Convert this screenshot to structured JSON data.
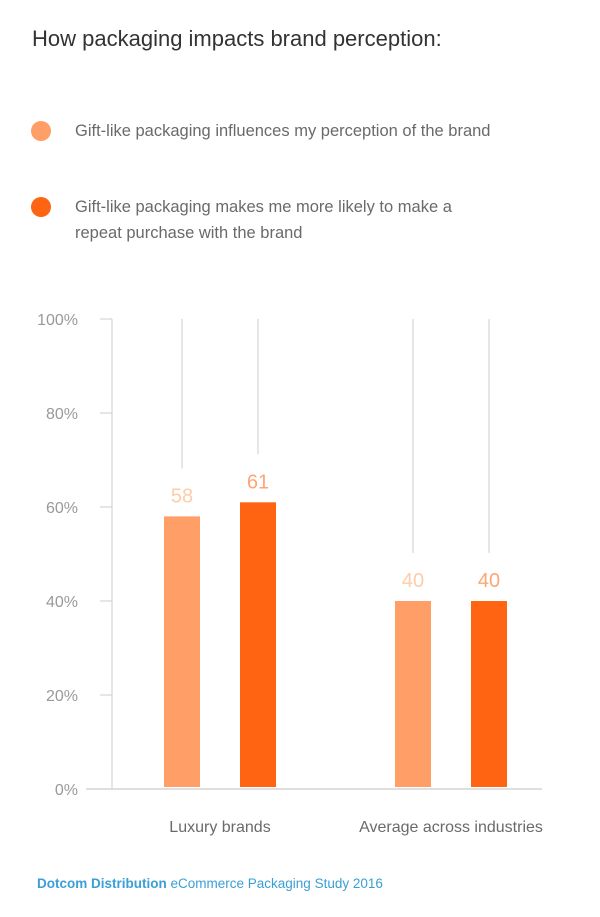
{
  "chart_data": {
    "type": "bar",
    "title": "How packaging impacts brand perception:",
    "categories": [
      "Luxury brands",
      "Average across industries"
    ],
    "series": [
      {
        "name": "Gift-like packaging influences my perception of the brand",
        "values": [
          58,
          40
        ],
        "color": "#FF9E66",
        "label_color": "#FFCBA8"
      },
      {
        "name": "Gift-like packaging makes me more likely to make a repeat purchase with the brand",
        "values": [
          61,
          40
        ],
        "color": "#FF6412",
        "label_color": "#FFA575"
      }
    ],
    "yticks": [
      "0%",
      "20%",
      "40%",
      "60%",
      "80%",
      "100%"
    ],
    "ylim": [
      0,
      100
    ],
    "legend": "top-left",
    "grid": false
  },
  "footer": {
    "brand": "Dotcom Distribution",
    "text": " eCommerce Packaging Study 2016"
  }
}
